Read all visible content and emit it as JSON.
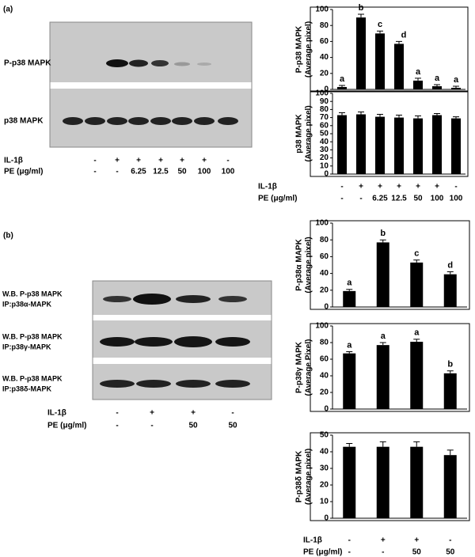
{
  "figure": {
    "panel_a": {
      "label": "(a)",
      "blot_labels": [
        "P-p38 MAPK",
        "p38 MAPK"
      ],
      "conditions": [
        {
          "label": "IL-1β",
          "values": [
            "-",
            "+",
            "+",
            "+",
            "+",
            "+",
            "-"
          ]
        },
        {
          "label": "PE (μg/ml)",
          "values": [
            "-",
            "-",
            "6.25",
            "12.5",
            "50",
            "100",
            "100"
          ]
        }
      ],
      "chart_conditions": [
        {
          "label": "IL-1β",
          "values": [
            "-",
            "+",
            "+",
            "+",
            "+",
            "+",
            "-"
          ]
        },
        {
          "label": "PE (μg/ml)",
          "values": [
            "-",
            "-",
            "6.25",
            "12.5",
            "50",
            "100",
            "100"
          ]
        }
      ]
    },
    "panel_b": {
      "label": "(b)",
      "blot_labels": [
        [
          "W.B. P-p38 MAPK",
          "IP:p38α-MAPK"
        ],
        [
          "W.B. P-p38 MAPK",
          "IP:p38γ-MAPK"
        ],
        [
          "W.B. P-p38 MAPK",
          "IP:p38δ-MAPK"
        ]
      ],
      "conditions": [
        {
          "label": "IL-1β",
          "values": [
            "-",
            "+",
            "+",
            "-"
          ]
        },
        {
          "label": "PE (μg/ml)",
          "values": [
            "-",
            "-",
            "50",
            "50"
          ]
        }
      ],
      "chart_conditions": [
        {
          "label": "IL-1β",
          "values": [
            "-",
            "+",
            "+",
            "-"
          ]
        },
        {
          "label": "PE (μg/ml)",
          "values": [
            "-",
            "-",
            "50",
            "50"
          ]
        }
      ]
    }
  },
  "chart_data": [
    {
      "type": "bar",
      "y_label": [
        "P-p38 MAPK",
        "(Average pixel)"
      ],
      "categories": [
        null,
        null,
        null,
        null,
        null,
        null,
        null
      ],
      "values": [
        3,
        90,
        70,
        57,
        11,
        4,
        2
      ],
      "errors": [
        2,
        4,
        3,
        3,
        3,
        2,
        2
      ],
      "annotations": [
        "a",
        "b",
        "c",
        "d",
        "a",
        "a",
        "a"
      ],
      "color": "#000000",
      "ylim": [
        0,
        100
      ],
      "yticks": [
        0,
        20,
        40,
        60,
        80,
        100
      ]
    },
    {
      "type": "bar",
      "y_label": [
        "p38 MAPK",
        "(Average pixel)"
      ],
      "categories": [
        null,
        null,
        null,
        null,
        null,
        null,
        null
      ],
      "values": [
        73,
        74,
        71,
        70,
        69,
        73,
        69
      ],
      "errors": [
        3,
        3,
        3,
        3,
        3,
        2,
        2
      ],
      "color": "#000000",
      "ylim": [
        0,
        100
      ],
      "yticks": [
        0,
        10,
        20,
        30,
        40,
        50,
        60,
        70,
        80,
        90,
        100
      ]
    },
    {
      "type": "bar",
      "y_label": [
        "P-p38α MAPK",
        "(Average pixel)"
      ],
      "categories": [
        null,
        null,
        null,
        null
      ],
      "values": [
        19,
        77,
        53,
        39
      ],
      "errors": [
        2,
        3,
        3,
        3
      ],
      "annotations": [
        "a",
        "b",
        "c",
        "d"
      ],
      "color": "#000000",
      "ylim": [
        0,
        100
      ],
      "yticks": [
        0,
        20,
        40,
        60,
        80,
        100
      ]
    },
    {
      "type": "bar",
      "y_label": [
        "P-p38γ MAPK",
        "(Average Pixel)"
      ],
      "categories": [
        null,
        null,
        null,
        null
      ],
      "values": [
        67,
        77,
        81,
        43
      ],
      "errors": [
        2,
        3,
        3,
        3
      ],
      "annotations": [
        "a",
        "a",
        "a",
        "b"
      ],
      "color": "#000000",
      "ylim": [
        0,
        100
      ],
      "yticks": [
        0,
        20,
        40,
        60,
        80,
        100
      ]
    },
    {
      "type": "bar",
      "y_label": [
        "P-p38δ MAPK",
        "(Average pixel)"
      ],
      "categories": [
        null,
        null,
        null,
        null
      ],
      "values": [
        43,
        43,
        43,
        38
      ],
      "errors": [
        2,
        3,
        3,
        3
      ],
      "color": "#000000",
      "ylim": [
        0,
        50
      ],
      "yticks": [
        0,
        10,
        20,
        30,
        40,
        50
      ]
    }
  ]
}
